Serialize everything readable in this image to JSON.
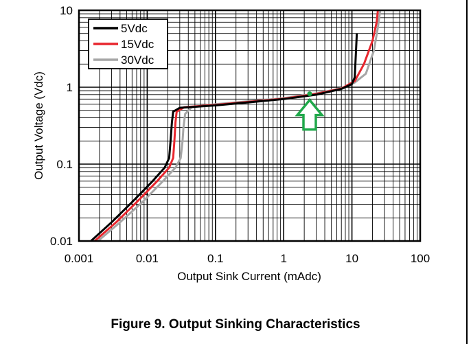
{
  "figure_caption": "Figure 9. Output Sinking Characteristics",
  "chart_data": {
    "type": "line",
    "title": "",
    "xlabel": "Output Sink Current (mAdc)",
    "ylabel": "Output Voltage (Vdc)",
    "x_scale": "log",
    "y_scale": "log",
    "xlim": [
      0.001,
      100
    ],
    "ylim": [
      0.01,
      10
    ],
    "x_ticks": [
      {
        "value": 0.001,
        "label": "0.001"
      },
      {
        "value": 0.01,
        "label": "0.01"
      },
      {
        "value": 0.1,
        "label": "0.1"
      },
      {
        "value": 1,
        "label": "1"
      },
      {
        "value": 10,
        "label": "10"
      },
      {
        "value": 100,
        "label": "100"
      }
    ],
    "y_ticks": [
      {
        "value": 0.01,
        "label": "0.01"
      },
      {
        "value": 0.1,
        "label": "0.1"
      },
      {
        "value": 1,
        "label": "1"
      },
      {
        "value": 10,
        "label": "10"
      }
    ],
    "grid": true,
    "legend": "top-left",
    "series": [
      {
        "name": "5Vdc",
        "color": "#000000",
        "points": [
          [
            0.0015,
            0.01
          ],
          [
            0.003,
            0.0175
          ],
          [
            0.006,
            0.032
          ],
          [
            0.012,
            0.06
          ],
          [
            0.018,
            0.09
          ],
          [
            0.021,
            0.12
          ],
          [
            0.022,
            0.2
          ],
          [
            0.023,
            0.35
          ],
          [
            0.024,
            0.48
          ],
          [
            0.03,
            0.54
          ],
          [
            0.1,
            0.58
          ],
          [
            1,
            0.7
          ],
          [
            3,
            0.8
          ],
          [
            7,
            0.95
          ],
          [
            10,
            1.1
          ],
          [
            11,
            1.35
          ],
          [
            11.8,
            5
          ]
        ]
      },
      {
        "name": "15Vdc",
        "color": "#e8262e",
        "points": [
          [
            0.0017,
            0.01
          ],
          [
            0.0035,
            0.0175
          ],
          [
            0.007,
            0.032
          ],
          [
            0.014,
            0.06
          ],
          [
            0.021,
            0.09
          ],
          [
            0.024,
            0.12
          ],
          [
            0.025,
            0.2
          ],
          [
            0.026,
            0.35
          ],
          [
            0.027,
            0.48
          ],
          [
            0.035,
            0.55
          ],
          [
            0.1,
            0.59
          ],
          [
            1,
            0.71
          ],
          [
            3,
            0.82
          ],
          [
            7,
            0.96
          ],
          [
            11,
            1.2
          ],
          [
            15,
            2
          ],
          [
            20,
            4
          ],
          [
            23,
            7
          ],
          [
            24,
            10
          ]
        ]
      },
      {
        "name": "30Vdc",
        "color": "#a6a6a6",
        "points": [
          [
            0.0019,
            0.01
          ],
          [
            0.004,
            0.0175
          ],
          [
            0.0085,
            0.032
          ],
          [
            0.017,
            0.06
          ],
          [
            0.026,
            0.09
          ],
          [
            0.031,
            0.12
          ],
          [
            0.033,
            0.2
          ],
          [
            0.034,
            0.3
          ],
          [
            0.036,
            0.45
          ],
          [
            0.045,
            0.55
          ],
          [
            0.1,
            0.6
          ],
          [
            1,
            0.72
          ],
          [
            3,
            0.83
          ],
          [
            7,
            0.97
          ],
          [
            11,
            1.15
          ],
          [
            16,
            1.5
          ],
          [
            21,
            3
          ],
          [
            24,
            6
          ],
          [
            26,
            10
          ]
        ]
      }
    ],
    "annotations": [
      {
        "type": "arrow-up",
        "color": "#1fa84a",
        "x": 2.4,
        "y": 0.82
      }
    ]
  }
}
